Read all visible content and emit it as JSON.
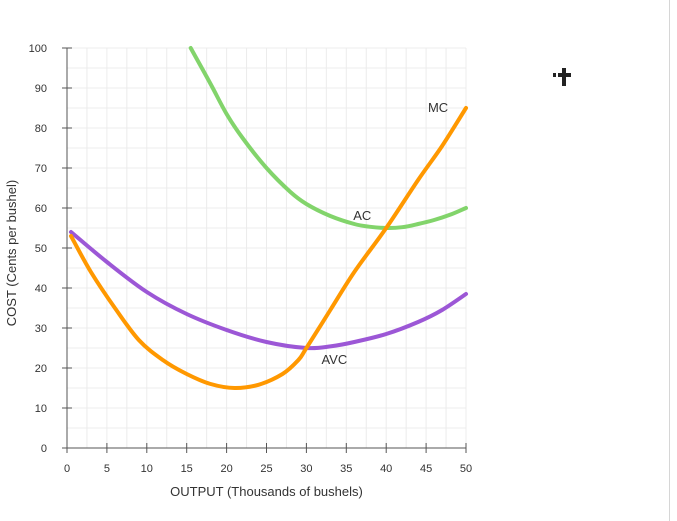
{
  "chart_data": {
    "type": "line",
    "xlabel": "OUTPUT (Thousands of bushels)",
    "ylabel": "COST (Cents per bushel)",
    "xlim": [
      0,
      50
    ],
    "ylim": [
      0,
      100
    ],
    "x_ticks": [
      "0",
      "5",
      "10",
      "15",
      "20",
      "25",
      "30",
      "35",
      "40",
      "45",
      "50"
    ],
    "y_ticks": [
      "0",
      "10",
      "20",
      "30",
      "40",
      "50",
      "60",
      "70",
      "80",
      "90",
      "100"
    ],
    "grid": true,
    "series": [
      {
        "name": "MC",
        "color": "#ff9800",
        "points": [
          [
            0.5,
            53
          ],
          [
            3,
            44
          ],
          [
            6,
            35
          ],
          [
            9,
            27
          ],
          [
            12,
            22
          ],
          [
            15,
            18.5
          ],
          [
            18,
            16
          ],
          [
            21,
            15
          ],
          [
            24,
            15.8
          ],
          [
            27,
            18.5
          ],
          [
            29,
            22
          ],
          [
            30,
            25
          ],
          [
            33,
            34.5
          ],
          [
            36,
            44
          ],
          [
            40,
            55
          ],
          [
            44,
            67
          ],
          [
            47,
            75.5
          ],
          [
            50,
            85
          ]
        ]
      },
      {
        "name": "AC",
        "color": "#82d46b",
        "points": [
          [
            15.5,
            100
          ],
          [
            18,
            91
          ],
          [
            20,
            83.5
          ],
          [
            22,
            77.5
          ],
          [
            25,
            70
          ],
          [
            28,
            64
          ],
          [
            30,
            61
          ],
          [
            33,
            58
          ],
          [
            36,
            56
          ],
          [
            38,
            55.3
          ],
          [
            40,
            55
          ],
          [
            42,
            55.2
          ],
          [
            44,
            56
          ],
          [
            46,
            57
          ],
          [
            48,
            58.3
          ],
          [
            50,
            60
          ]
        ]
      },
      {
        "name": "AVC",
        "color": "#9c57d6",
        "points": [
          [
            0.5,
            54
          ],
          [
            5,
            46.5
          ],
          [
            10,
            39
          ],
          [
            15,
            33.5
          ],
          [
            20,
            29.5
          ],
          [
            25,
            26.5
          ],
          [
            30,
            25
          ],
          [
            33,
            25.4
          ],
          [
            36,
            26.5
          ],
          [
            40,
            28.5
          ],
          [
            44,
            31.5
          ],
          [
            47,
            34.5
          ],
          [
            50,
            38.5
          ]
        ]
      }
    ],
    "annotations": [
      {
        "text": "MC",
        "x": 46.5,
        "y": 84
      },
      {
        "text": "AC",
        "x": 37,
        "y": 57
      },
      {
        "text": "AVC",
        "x": 33.5,
        "y": 21
      }
    ]
  }
}
